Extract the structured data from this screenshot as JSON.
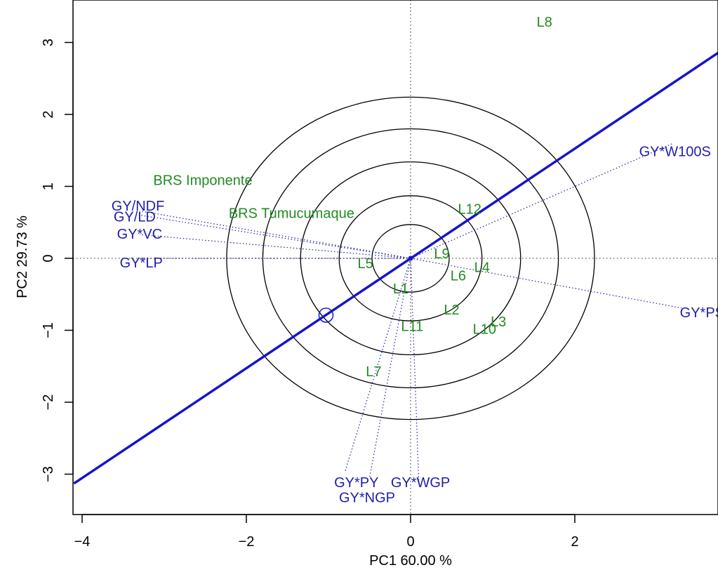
{
  "chart_data": {
    "type": "scatter",
    "title": "",
    "xlabel": "PC1 60.00 %",
    "ylabel": "PC2 29.73 %",
    "xlim": [
      -4.1,
      3.75
    ],
    "ylim": [
      -3.6,
      3.5
    ],
    "x_ticks": [
      -4,
      -2,
      0,
      2
    ],
    "y_ticks": [
      -3,
      -2,
      -1,
      0,
      1,
      2,
      3
    ],
    "x_tick_labels": [
      "−4",
      "−2",
      "0",
      "2"
    ],
    "y_tick_labels": [
      "−3",
      "−2",
      "−1",
      "0",
      "1",
      "2",
      "3"
    ],
    "grid": false,
    "center": {
      "x": 0,
      "y": 0
    },
    "circle_radii": [
      0.47,
      0.87,
      1.34,
      1.8,
      2.24
    ],
    "ideal_marker": {
      "x": -1.03,
      "y": -0.79
    },
    "axis_line": {
      "x1": -4.1,
      "y1": -3.13,
      "x2": 3.75,
      "y2": 2.86
    },
    "colors": {
      "genotype": "#228B22",
      "trait": "#1F1FA8",
      "axis_line": "#1515C8",
      "circle": "#000000",
      "guide": "#555555"
    },
    "genotypes": [
      {
        "label": "L8",
        "x": 1.63,
        "y": 3.28
      },
      {
        "label": "BRS Imponente",
        "x": -2.53,
        "y": 1.08
      },
      {
        "label": "BRS Tumucumaque",
        "x": -1.45,
        "y": 0.62
      },
      {
        "label": "L12",
        "x": 0.72,
        "y": 0.68
      },
      {
        "label": "L9",
        "x": 0.38,
        "y": 0.06
      },
      {
        "label": "L5",
        "x": -0.55,
        "y": -0.08
      },
      {
        "label": "L4",
        "x": 0.87,
        "y": -0.13
      },
      {
        "label": "L6",
        "x": 0.58,
        "y": -0.25
      },
      {
        "label": "L1",
        "x": -0.12,
        "y": -0.43
      },
      {
        "label": "L2",
        "x": 0.5,
        "y": -0.72
      },
      {
        "label": "L11",
        "x": 0.02,
        "y": -0.95
      },
      {
        "label": "L3",
        "x": 1.07,
        "y": -0.89
      },
      {
        "label": "L10",
        "x": 0.9,
        "y": -0.99
      },
      {
        "label": "L7",
        "x": -0.45,
        "y": -1.58
      }
    ],
    "traits": [
      {
        "label": "GY*W100S",
        "x": 3.22,
        "y": 1.48
      },
      {
        "label": "GY/NDF",
        "x": -3.32,
        "y": 0.72
      },
      {
        "label": "GY/LD",
        "x": -3.36,
        "y": 0.57
      },
      {
        "label": "GY*VC",
        "x": -3.3,
        "y": 0.33
      },
      {
        "label": "GY*LP",
        "x": -3.28,
        "y": -0.07
      },
      {
        "label": "GY*PS",
        "x": 3.55,
        "y": -0.76
      },
      {
        "label": "GY*PY",
        "x": -0.66,
        "y": -3.12
      },
      {
        "label": "GY*WGP",
        "x": 0.12,
        "y": -3.12
      },
      {
        "label": "GY*NGP",
        "x": -0.53,
        "y": -3.33
      }
    ],
    "trait_vectors": [
      {
        "label": "GY*W100S",
        "x": 3.2,
        "y": 1.6
      },
      {
        "label": "GY/NDF",
        "x": -3.3,
        "y": 0.66
      },
      {
        "label": "GY/LD",
        "x": -3.3,
        "y": 0.6
      },
      {
        "label": "GY*VC",
        "x": -3.3,
        "y": 0.33
      },
      {
        "label": "GY*LP",
        "x": -3.3,
        "y": 0.0
      },
      {
        "label": "GY*PS",
        "x": 3.3,
        "y": -0.69
      },
      {
        "label": "GY*PY",
        "x": -0.8,
        "y": -2.97
      },
      {
        "label": "GY*NGP",
        "x": -0.5,
        "y": -3.05
      },
      {
        "label": "GY*WGP",
        "x": 0.1,
        "y": -3.1
      }
    ]
  }
}
